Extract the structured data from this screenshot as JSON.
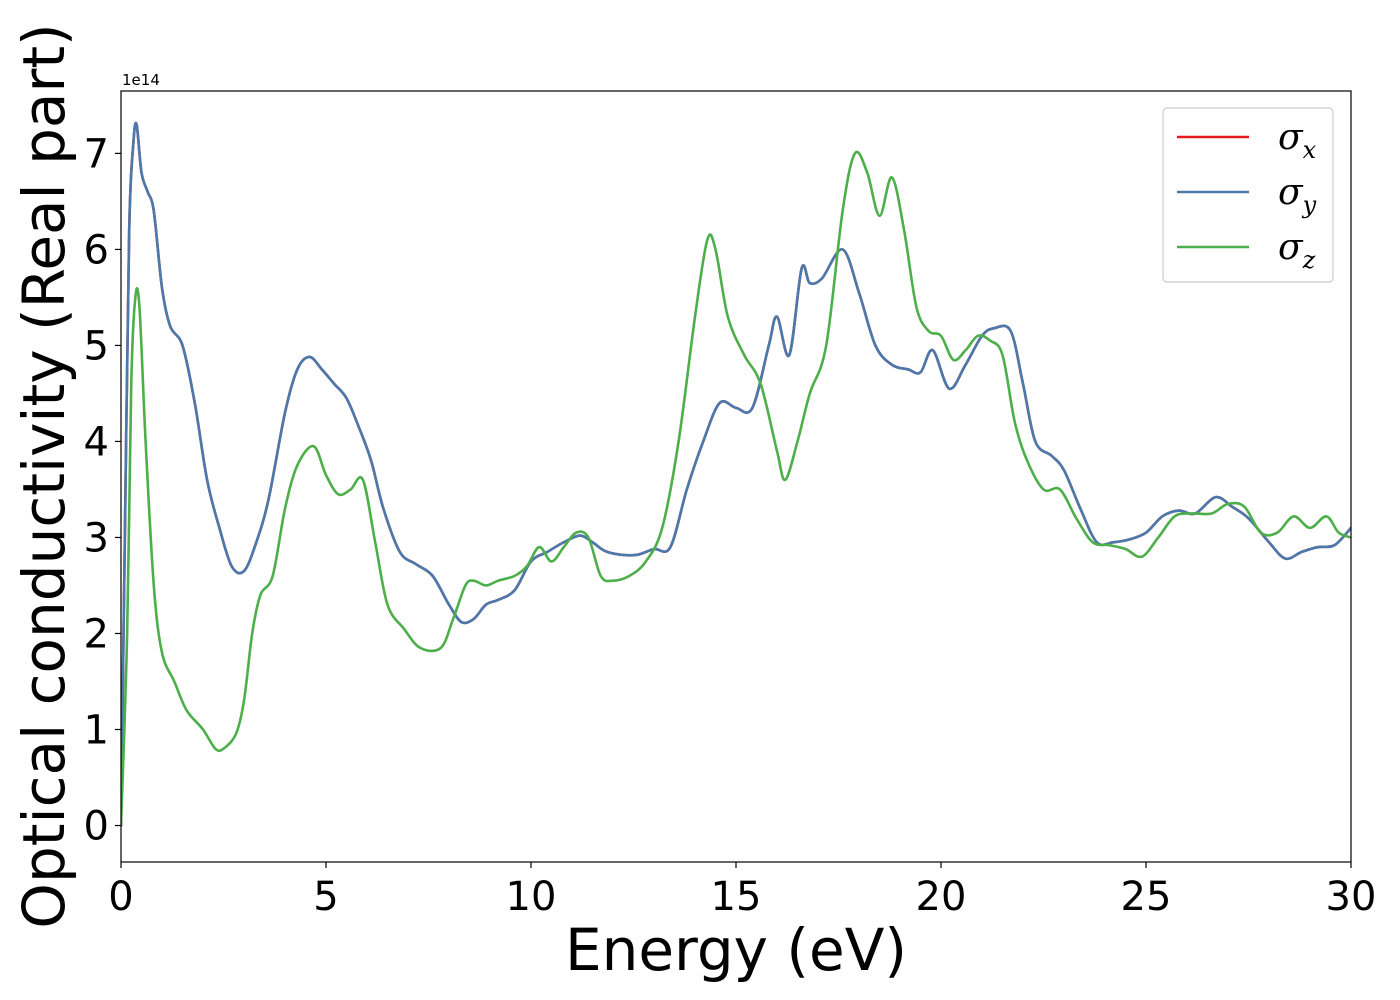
{
  "chart_data": {
    "type": "line",
    "title": "",
    "xlabel": "Energy (eV)",
    "ylabel": "Optical conductivity (Real part)",
    "y_offset_label": "1e14",
    "xlim": [
      0,
      30
    ],
    "ylim": [
      -0.38,
      7.65
    ],
    "xticks": [
      0,
      5,
      10,
      15,
      20,
      25,
      30
    ],
    "xtick_labels": [
      "0",
      "5",
      "10",
      "15",
      "20",
      "25",
      "30"
    ],
    "yticks": [
      0,
      1,
      2,
      3,
      4,
      5,
      6,
      7
    ],
    "ytick_labels": [
      "0",
      "1",
      "2",
      "3",
      "4",
      "5",
      "6",
      "7"
    ],
    "grid": false,
    "legend_position": "top-right",
    "series": [
      {
        "name": "σx",
        "symbol": "σ",
        "subscript": "x",
        "color": "#e41a1c",
        "x": [
          0,
          0.1,
          0.2,
          0.3,
          0.38,
          0.5,
          0.65,
          0.8,
          1.0,
          1.2,
          1.5,
          1.8,
          2.1,
          2.4,
          2.7,
          3.0,
          3.3,
          3.6,
          4.0,
          4.3,
          4.6,
          4.9,
          5.2,
          5.5,
          5.8,
          6.1,
          6.4,
          6.8,
          7.2,
          7.6,
          8.0,
          8.3,
          8.6,
          8.9,
          9.2,
          9.6,
          10.0,
          10.4,
          10.8,
          11.2,
          11.5,
          11.8,
          12.2,
          12.6,
          13.0,
          13.4,
          13.8,
          14.2,
          14.6,
          15.0,
          15.4,
          15.8,
          16.0,
          16.3,
          16.6,
          16.8,
          17.1,
          17.6,
          18.0,
          18.4,
          18.8,
          19.2,
          19.5,
          19.8,
          20.2,
          20.6,
          21.0,
          21.3,
          21.7,
          22.0,
          22.3,
          22.7,
          23.0,
          23.4,
          23.8,
          24.2,
          24.6,
          25.0,
          25.4,
          25.8,
          26.2,
          26.7,
          27.1,
          27.5,
          28.0,
          28.4,
          28.8,
          29.2,
          29.6,
          30.0
        ],
        "y": [
          0,
          3.2,
          6.2,
          7.1,
          7.3,
          6.8,
          6.6,
          6.4,
          5.6,
          5.2,
          5.0,
          4.4,
          3.6,
          3.1,
          2.7,
          2.65,
          2.95,
          3.4,
          4.3,
          4.75,
          4.88,
          4.75,
          4.6,
          4.45,
          4.15,
          3.8,
          3.3,
          2.85,
          2.72,
          2.6,
          2.3,
          2.12,
          2.15,
          2.3,
          2.35,
          2.45,
          2.75,
          2.85,
          2.95,
          3.02,
          2.95,
          2.86,
          2.82,
          2.82,
          2.88,
          2.9,
          3.5,
          4.0,
          4.4,
          4.35,
          4.35,
          5.0,
          5.3,
          4.9,
          5.8,
          5.65,
          5.7,
          6.0,
          5.55,
          5.0,
          4.8,
          4.75,
          4.72,
          4.95,
          4.55,
          4.8,
          5.1,
          5.18,
          5.15,
          4.6,
          4.0,
          3.85,
          3.7,
          3.3,
          2.95,
          2.95,
          2.98,
          3.05,
          3.22,
          3.28,
          3.25,
          3.42,
          3.32,
          3.2,
          2.95,
          2.78,
          2.85,
          2.9,
          2.92,
          3.1
        ]
      },
      {
        "name": "σy",
        "symbol": "σ",
        "subscript": "y",
        "color": "#4a7aad",
        "x": [
          0,
          0.1,
          0.2,
          0.3,
          0.38,
          0.5,
          0.65,
          0.8,
          1.0,
          1.2,
          1.5,
          1.8,
          2.1,
          2.4,
          2.7,
          3.0,
          3.3,
          3.6,
          4.0,
          4.3,
          4.6,
          4.9,
          5.2,
          5.5,
          5.8,
          6.1,
          6.4,
          6.8,
          7.2,
          7.6,
          8.0,
          8.3,
          8.6,
          8.9,
          9.2,
          9.6,
          10.0,
          10.4,
          10.8,
          11.2,
          11.5,
          11.8,
          12.2,
          12.6,
          13.0,
          13.4,
          13.8,
          14.2,
          14.6,
          15.0,
          15.4,
          15.8,
          16.0,
          16.3,
          16.6,
          16.8,
          17.1,
          17.6,
          18.0,
          18.4,
          18.8,
          19.2,
          19.5,
          19.8,
          20.2,
          20.6,
          21.0,
          21.3,
          21.7,
          22.0,
          22.3,
          22.7,
          23.0,
          23.4,
          23.8,
          24.2,
          24.6,
          25.0,
          25.4,
          25.8,
          26.2,
          26.7,
          27.1,
          27.5,
          28.0,
          28.4,
          28.8,
          29.2,
          29.6,
          30.0
        ],
        "y": [
          0,
          3.2,
          6.2,
          7.1,
          7.3,
          6.8,
          6.6,
          6.4,
          5.6,
          5.2,
          5.0,
          4.4,
          3.6,
          3.1,
          2.7,
          2.65,
          2.95,
          3.4,
          4.3,
          4.75,
          4.88,
          4.75,
          4.6,
          4.45,
          4.15,
          3.8,
          3.3,
          2.85,
          2.72,
          2.6,
          2.3,
          2.12,
          2.15,
          2.3,
          2.35,
          2.45,
          2.75,
          2.85,
          2.95,
          3.02,
          2.95,
          2.86,
          2.82,
          2.82,
          2.88,
          2.9,
          3.5,
          4.0,
          4.4,
          4.35,
          4.35,
          5.0,
          5.3,
          4.9,
          5.8,
          5.65,
          5.7,
          6.0,
          5.55,
          5.0,
          4.8,
          4.75,
          4.72,
          4.95,
          4.55,
          4.8,
          5.1,
          5.18,
          5.15,
          4.6,
          4.0,
          3.85,
          3.7,
          3.3,
          2.95,
          2.95,
          2.98,
          3.05,
          3.22,
          3.28,
          3.25,
          3.42,
          3.32,
          3.2,
          2.95,
          2.78,
          2.85,
          2.9,
          2.92,
          3.1
        ]
      },
      {
        "name": "σz",
        "symbol": "σ",
        "subscript": "z",
        "color": "#4daf4a",
        "x": [
          0,
          0.15,
          0.25,
          0.35,
          0.45,
          0.6,
          0.8,
          1.0,
          1.3,
          1.6,
          2.0,
          2.3,
          2.5,
          2.8,
          3.0,
          3.2,
          3.4,
          3.7,
          4.0,
          4.3,
          4.7,
          5.0,
          5.3,
          5.6,
          5.9,
          6.2,
          6.5,
          6.9,
          7.3,
          7.8,
          8.1,
          8.4,
          8.6,
          8.9,
          9.2,
          9.6,
          9.9,
          10.2,
          10.5,
          10.8,
          11.1,
          11.4,
          11.7,
          12.0,
          12.4,
          12.8,
          13.2,
          13.6,
          14.0,
          14.3,
          14.5,
          14.8,
          15.2,
          15.6,
          16.0,
          16.2,
          16.5,
          16.8,
          17.2,
          17.6,
          17.9,
          18.2,
          18.5,
          18.8,
          19.1,
          19.4,
          19.7,
          20.0,
          20.3,
          20.6,
          20.9,
          21.2,
          21.5,
          21.8,
          22.1,
          22.5,
          22.9,
          23.3,
          23.7,
          24.1,
          24.5,
          24.9,
          25.3,
          25.7,
          26.1,
          26.6,
          27.0,
          27.4,
          27.8,
          28.2,
          28.6,
          29.0,
          29.4,
          29.7,
          30.0
        ],
        "y": [
          0,
          2.0,
          4.6,
          5.5,
          5.4,
          4.0,
          2.5,
          1.8,
          1.5,
          1.2,
          1.0,
          0.8,
          0.8,
          0.95,
          1.3,
          2.0,
          2.4,
          2.6,
          3.3,
          3.75,
          3.95,
          3.65,
          3.45,
          3.5,
          3.6,
          2.95,
          2.3,
          2.05,
          1.85,
          1.85,
          2.15,
          2.5,
          2.55,
          2.5,
          2.55,
          2.6,
          2.7,
          2.9,
          2.75,
          2.9,
          3.05,
          3.0,
          2.6,
          2.55,
          2.6,
          2.75,
          3.1,
          4.0,
          5.3,
          6.1,
          6.0,
          5.3,
          4.9,
          4.6,
          3.9,
          3.6,
          4.0,
          4.5,
          5.0,
          6.4,
          7.0,
          6.8,
          6.35,
          6.75,
          6.2,
          5.4,
          5.15,
          5.1,
          4.85,
          4.95,
          5.1,
          5.05,
          4.9,
          4.2,
          3.8,
          3.5,
          3.5,
          3.2,
          2.95,
          2.92,
          2.88,
          2.8,
          3.0,
          3.22,
          3.25,
          3.25,
          3.35,
          3.32,
          3.05,
          3.05,
          3.22,
          3.1,
          3.22,
          3.05,
          3.0
        ]
      }
    ]
  }
}
